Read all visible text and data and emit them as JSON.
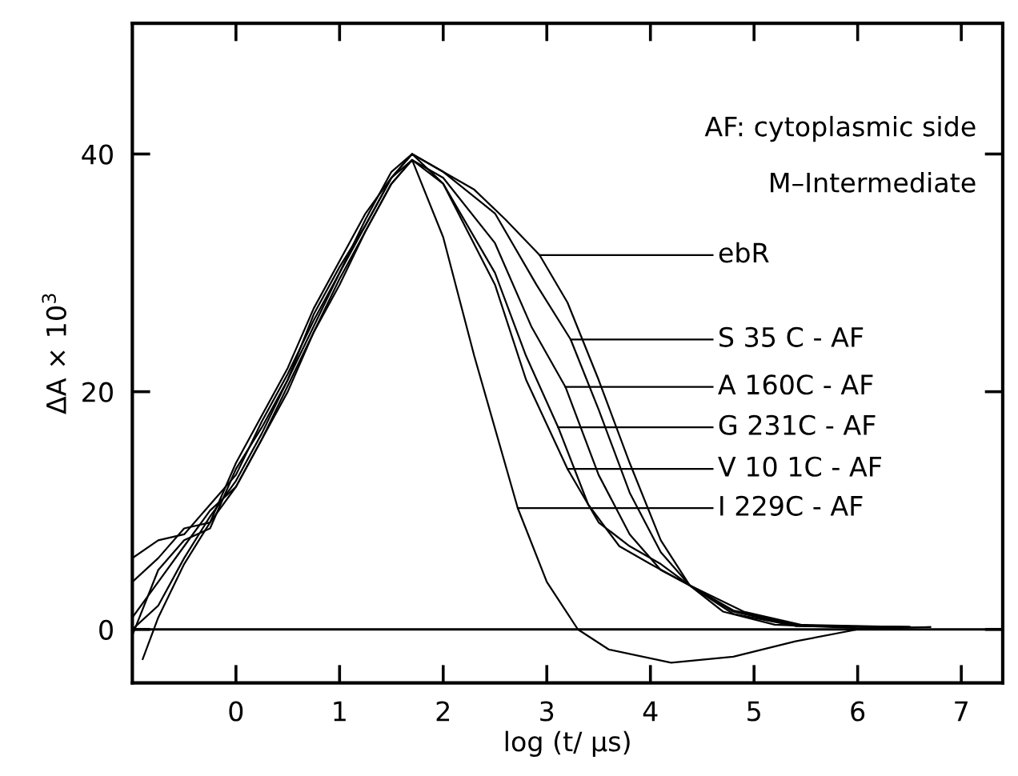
{
  "chart_data": {
    "type": "line",
    "xlabel": "log (t/ μs)",
    "ylabel": "ΔA × 10$^{3}$",
    "xlim": [
      -1,
      7.4
    ],
    "ylim": [
      -4.5,
      51
    ],
    "xticks": [
      0,
      1,
      2,
      3,
      4,
      5,
      6,
      7
    ],
    "yticks": [
      0,
      20,
      40
    ],
    "grid": false,
    "line_style": "solid",
    "marker": "none",
    "ref_lines": [
      {
        "axis": "y",
        "value": 0,
        "color": "#000000"
      }
    ],
    "annotations": [
      "AF: cytoplasmic side",
      "M–Intermediate",
      {
        "text": "ebR",
        "x": 2.93,
        "y": 31.5
      },
      {
        "text": "S 35 C - AF",
        "x": 3.23,
        "y": 24.4
      },
      {
        "text": "A 160C - AF",
        "x": 3.18,
        "y": 20.4
      },
      {
        "text": "G 231C - AF",
        "x": 3.11,
        "y": 17.0
      },
      {
        "text": "V 10 1C - AF",
        "x": 3.2,
        "y": 13.5
      },
      {
        "text": "I 229C - AF",
        "x": 2.72,
        "y": 10.2
      }
    ],
    "series": [
      {
        "color": "#000000",
        "x": [
          -1,
          -0.75,
          -0.5,
          -0.25,
          0,
          0.25,
          0.5,
          0.75,
          1,
          1.25,
          1.5,
          1.7,
          2.0,
          2.3,
          2.6,
          2.93,
          3.2,
          3.5,
          3.8,
          4.1,
          4.38,
          4.7,
          5.2,
          6.0,
          6.7
        ],
        "values": [
          6,
          7.5,
          8,
          10.5,
          13,
          17.5,
          21.5,
          26,
          30,
          34.5,
          38.5,
          40,
          38.5,
          37,
          34.5,
          31.5,
          27.5,
          21,
          14,
          7.5,
          3.7,
          1.5,
          0.4,
          0.1,
          0.2
        ]
      },
      {
        "color": "#000000",
        "x": [
          -1,
          -0.75,
          -0.5,
          -0.25,
          0,
          0.25,
          0.5,
          0.75,
          1,
          1.25,
          1.5,
          1.7,
          2.0,
          2.5,
          2.9,
          3.23,
          3.5,
          3.8,
          4.1,
          4.38,
          4.8,
          5.4,
          6.5
        ],
        "values": [
          4,
          6,
          8.5,
          9,
          14,
          18,
          22,
          27,
          31,
          35,
          38,
          40,
          38.5,
          35,
          29,
          24.4,
          18.5,
          11.5,
          6.5,
          3.7,
          1.3,
          0.3,
          0.2
        ]
      },
      {
        "color": "#000000",
        "x": [
          -1,
          -0.75,
          -0.5,
          -0.25,
          0,
          0.25,
          0.5,
          0.75,
          1,
          1.25,
          1.5,
          1.7,
          2.0,
          2.5,
          2.85,
          3.18,
          3.5,
          3.8,
          4.1,
          4.38,
          4.8,
          5.4,
          6.5
        ],
        "values": [
          1,
          4,
          7,
          10,
          12,
          16,
          20.5,
          25,
          29,
          33.5,
          37.5,
          39.5,
          38,
          32.5,
          25.5,
          20.4,
          13,
          8,
          5,
          3.7,
          1.5,
          0.3,
          0.2
        ]
      },
      {
        "color": "#000000",
        "x": [
          -1,
          -0.75,
          -0.5,
          -0.25,
          0,
          0.25,
          0.5,
          0.75,
          1,
          1.25,
          1.5,
          1.7,
          2.0,
          2.5,
          2.8,
          3.11,
          3.4,
          3.7,
          4.0,
          4.38,
          4.8,
          5.4,
          6.5
        ],
        "values": [
          0,
          2,
          6,
          9.5,
          12.5,
          16.5,
          21,
          25.5,
          30,
          34,
          38,
          39.5,
          37.5,
          30,
          23,
          17.0,
          10.5,
          7,
          5.5,
          3.7,
          1.6,
          0.4,
          0.2
        ]
      },
      {
        "color": "#000000",
        "x": [
          -1,
          -0.75,
          -0.5,
          -0.25,
          0,
          0.25,
          0.5,
          0.75,
          1,
          1.25,
          1.5,
          1.7,
          2.0,
          2.5,
          2.8,
          3.2,
          3.5,
          3.8,
          4.1,
          4.38,
          4.9,
          5.5,
          6.5
        ],
        "values": [
          -0.5,
          5,
          7.5,
          8.5,
          13.5,
          17,
          21,
          26.5,
          30.5,
          34,
          38,
          40,
          37.5,
          29,
          21,
          13.5,
          9,
          7,
          5.5,
          3.7,
          1.5,
          0.3,
          0.2
        ]
      },
      {
        "color": "#000000",
        "x": [
          -0.9,
          -0.75,
          -0.5,
          -0.25,
          0,
          0.25,
          0.5,
          0.75,
          1,
          1.25,
          1.5,
          1.7,
          2.0,
          2.3,
          2.72,
          3.0,
          3.3,
          3.6,
          4.2,
          4.8,
          5.4,
          6.0,
          6.7
        ],
        "values": [
          -2.5,
          1,
          5.5,
          9,
          12,
          16,
          20,
          25,
          29.5,
          33.5,
          37.5,
          39.5,
          33,
          23,
          10.2,
          4,
          0,
          -1.7,
          -2.8,
          -2.3,
          -1,
          0,
          0.2
        ]
      }
    ]
  }
}
